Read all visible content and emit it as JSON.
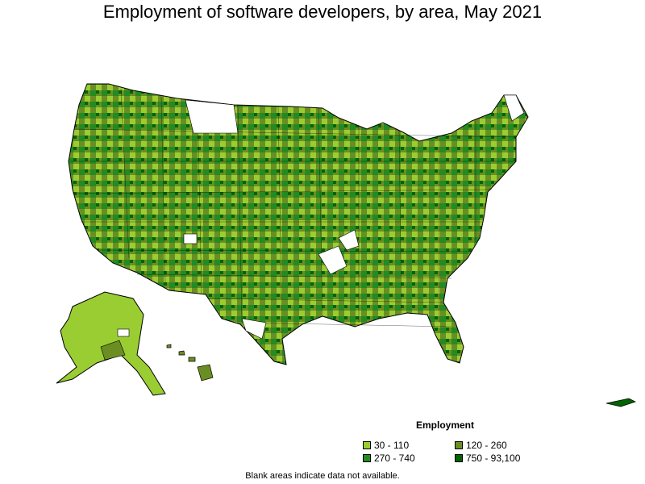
{
  "title": "Employment of software developers, by area, May 2021",
  "legend": {
    "title": "Employment",
    "items": [
      {
        "label": "30 - 110",
        "color": "#9acd32"
      },
      {
        "label": "120 - 260",
        "color": "#6b8e23"
      },
      {
        "label": "270 - 740",
        "color": "#228b22"
      },
      {
        "label": "750 - 93,100",
        "color": "#006400"
      }
    ]
  },
  "note": "Blank areas indicate data not available.",
  "regions": [
    {
      "name": "us-mainland",
      "class_index": 2
    },
    {
      "name": "alaska",
      "class_index": 0
    },
    {
      "name": "hawaii",
      "class_index": 1
    },
    {
      "name": "puerto-rico",
      "class_index": 3
    }
  ]
}
